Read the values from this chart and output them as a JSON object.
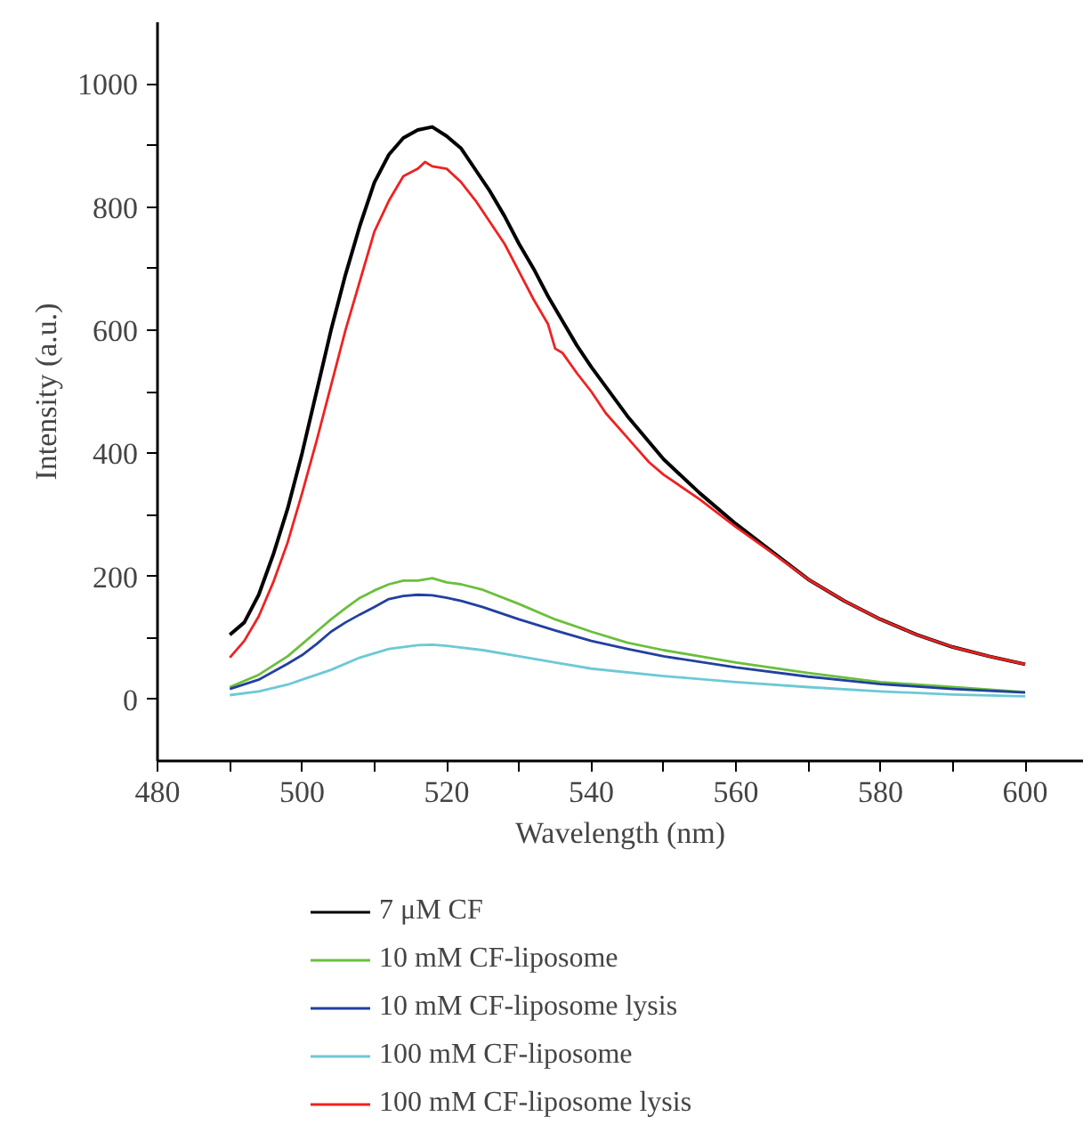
{
  "chart_data": {
    "type": "line",
    "xlabel": "Wavelength (nm)",
    "ylabel": "Intensity (a.u.)",
    "xlim": [
      480,
      608
    ],
    "ylim": [
      -100,
      1100
    ],
    "xticks": [
      480,
      {
        "value": 490,
        "label": null
      },
      500,
      {
        "value": 510,
        "label": null
      },
      520,
      {
        "value": 530,
        "label": null
      },
      540,
      {
        "value": 550,
        "label": null
      },
      560,
      {
        "value": 570,
        "label": null
      },
      580,
      {
        "value": 590,
        "label": null
      },
      600
    ],
    "yticks": [
      0,
      {
        "value": 100,
        "label": null
      },
      200,
      {
        "value": 300,
        "label": null
      },
      400,
      {
        "value": 500,
        "label": null
      },
      600,
      {
        "value": 700,
        "label": null
      },
      800,
      {
        "value": 900,
        "label": null
      },
      1000
    ],
    "grid": false,
    "legend": "bottom",
    "marker": "none",
    "line_style": "solid",
    "series": [
      {
        "name": "7 μM CF",
        "color": "#000000",
        "x": [
          490,
          492,
          494,
          496,
          498,
          500,
          502,
          504,
          506,
          508,
          510,
          512,
          514,
          516,
          518,
          520,
          522,
          524,
          526,
          528,
          530,
          532,
          534,
          536,
          538,
          540,
          545,
          550,
          555,
          560,
          565,
          570,
          575,
          580,
          585,
          590,
          595,
          600
        ],
        "values": [
          105,
          125,
          170,
          235,
          310,
          400,
          500,
          600,
          690,
          770,
          840,
          885,
          912,
          925,
          930,
          915,
          895,
          860,
          825,
          785,
          740,
          700,
          655,
          615,
          575,
          540,
          460,
          390,
          335,
          285,
          240,
          195,
          160,
          130,
          105,
          85,
          70,
          57
        ]
      },
      {
        "name": "10 mM CF-liposome",
        "color": "#6bbf3c",
        "x": [
          490,
          494,
          498,
          500,
          502,
          504,
          506,
          508,
          510,
          512,
          514,
          516,
          518,
          520,
          522,
          525,
          530,
          535,
          540,
          545,
          550,
          555,
          560,
          570,
          580,
          590,
          600
        ],
        "values": [
          20,
          40,
          70,
          90,
          110,
          130,
          148,
          165,
          177,
          187,
          193,
          193,
          197,
          190,
          187,
          178,
          155,
          130,
          110,
          92,
          80,
          70,
          60,
          43,
          28,
          20,
          12
        ]
      },
      {
        "name": "10 mM CF-liposome lysis",
        "color": "#2240a0",
        "x": [
          490,
          494,
          498,
          500,
          502,
          504,
          506,
          508,
          510,
          512,
          514,
          516,
          518,
          520,
          522,
          525,
          530,
          535,
          540,
          545,
          550,
          560,
          570,
          580,
          590,
          600
        ],
        "values": [
          17,
          32,
          58,
          72,
          90,
          110,
          125,
          138,
          150,
          163,
          168,
          170,
          169,
          165,
          160,
          150,
          130,
          112,
          95,
          82,
          70,
          52,
          37,
          25,
          17,
          11
        ]
      },
      {
        "name": "100 mM CF-liposome",
        "color": "#6cc9d6",
        "x": [
          490,
          494,
          498,
          500,
          504,
          508,
          512,
          516,
          518,
          520,
          525,
          530,
          535,
          540,
          550,
          560,
          570,
          580,
          590,
          600
        ],
        "values": [
          7,
          13,
          24,
          32,
          48,
          68,
          82,
          88,
          89,
          87,
          80,
          70,
          60,
          50,
          38,
          28,
          20,
          13,
          8,
          5
        ]
      },
      {
        "name": "100 mM CF-liposome lysis",
        "color": "#ee2222",
        "x": [
          490,
          492,
          494,
          496,
          498,
          500,
          502,
          504,
          506,
          508,
          510,
          512,
          514,
          516,
          517,
          518,
          520,
          522,
          524,
          526,
          528,
          530,
          532,
          534,
          535,
          536,
          538,
          540,
          542,
          545,
          548,
          550,
          555,
          560,
          565,
          570,
          575,
          580,
          585,
          590,
          595,
          600
        ],
        "values": [
          68,
          95,
          135,
          190,
          255,
          335,
          420,
          510,
          600,
          680,
          760,
          810,
          850,
          862,
          873,
          866,
          862,
          840,
          810,
          775,
          740,
          695,
          650,
          610,
          570,
          563,
          530,
          500,
          465,
          425,
          385,
          365,
          325,
          280,
          238,
          195,
          160,
          130,
          105,
          85,
          70,
          57
        ]
      }
    ]
  }
}
